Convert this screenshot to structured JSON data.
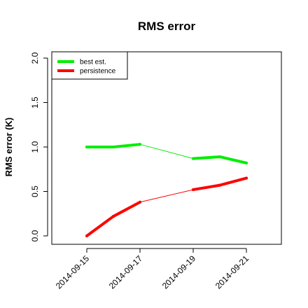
{
  "chart_data": {
    "type": "line",
    "title": "RMS error",
    "xlabel": "",
    "ylabel": "RMS error (K)",
    "ylim": [
      0,
      2
    ],
    "yticks": [
      "0.0",
      "0.5",
      "1.0",
      "1.5",
      "2.0"
    ],
    "x": [
      "2014-09-15",
      "2014-09-16",
      "2014-09-17",
      "2014-09-19",
      "2014-09-20",
      "2014-09-21"
    ],
    "xticks": [
      "2014-09-15",
      "2014-09-17",
      "2014-09-19",
      "2014-09-21"
    ],
    "highlight_tick": "2014-09-21",
    "highlight_color": "#ff0000",
    "legend_position": "top-left",
    "series": [
      {
        "name": "best est.",
        "color": "#00ee00",
        "values": [
          1.0,
          1.0,
          1.03,
          0.87,
          0.89,
          0.82
        ]
      },
      {
        "name": "persistence",
        "color": "#ff0000",
        "values": [
          0.0,
          0.22,
          0.38,
          0.52,
          0.57,
          0.65
        ]
      }
    ]
  }
}
